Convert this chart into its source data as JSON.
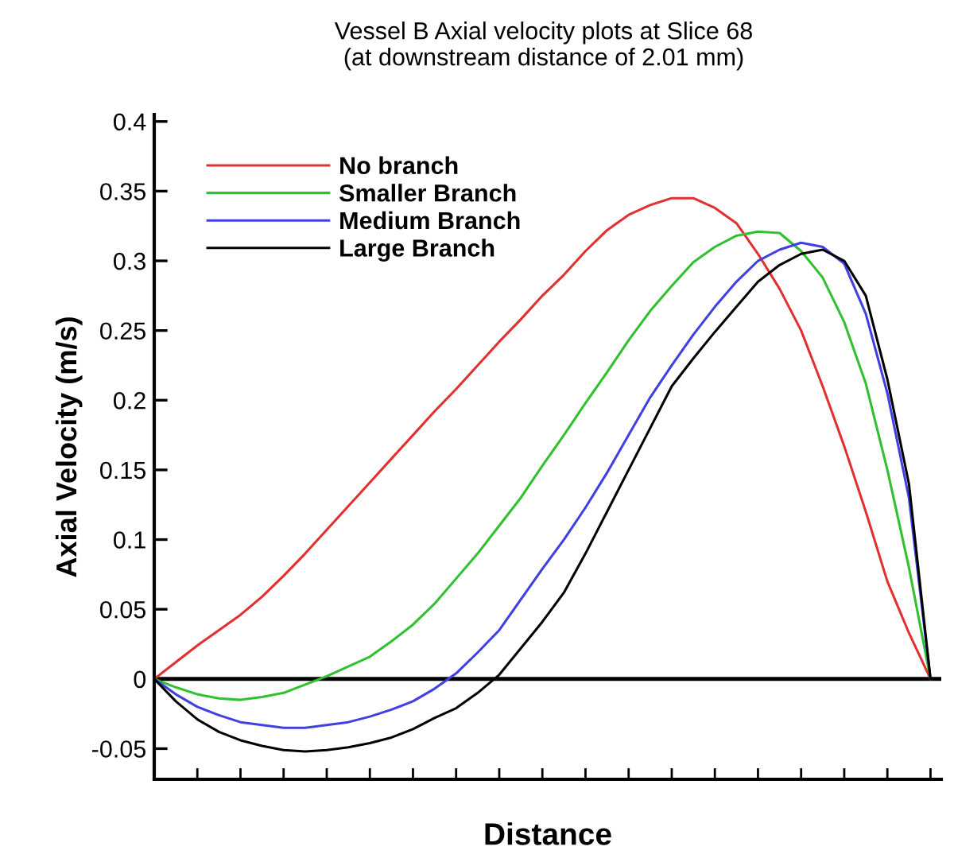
{
  "chart_data": {
    "type": "line",
    "title": "Vessel B Axial velocity plots at Slice 68\n(at downstream distance of 2.01 mm)",
    "xlabel": "Distance",
    "ylabel": "Axial Velocity (m/s)",
    "categories": [
      null,
      null,
      null,
      null,
      null,
      null,
      null,
      null,
      null,
      null,
      null,
      null,
      null,
      null,
      null,
      null,
      null,
      null,
      null,
      null,
      null,
      null,
      null,
      null,
      null,
      null,
      null,
      null,
      null,
      null,
      null,
      null,
      null,
      null,
      null,
      null,
      null
    ],
    "series": [
      {
        "name": "No branch",
        "color": "#e03030",
        "values": [
          0,
          0.012,
          0.024,
          0.035,
          0.046,
          0.059,
          0.074,
          0.09,
          0.107,
          0.124,
          0.141,
          0.158,
          0.175,
          0.192,
          0.208,
          0.225,
          0.242,
          0.258,
          0.275,
          0.29,
          0.307,
          0.322,
          0.333,
          0.34,
          0.345,
          0.345,
          0.338,
          0.327,
          0.305,
          0.28,
          0.25,
          0.21,
          0.167,
          0.12,
          0.07,
          0.033,
          0
        ]
      },
      {
        "name": "Smaller Branch",
        "color": "#30c030",
        "values": [
          0,
          -0.006,
          -0.011,
          -0.014,
          -0.015,
          -0.013,
          -0.01,
          -0.004,
          0.002,
          0.009,
          0.016,
          0.027,
          0.039,
          0.054,
          0.072,
          0.09,
          0.11,
          0.13,
          0.153,
          0.175,
          0.198,
          0.22,
          0.243,
          0.264,
          0.282,
          0.299,
          0.31,
          0.318,
          0.321,
          0.32,
          0.307,
          0.288,
          0.256,
          0.212,
          0.15,
          0.08,
          0
        ]
      },
      {
        "name": "Medium Branch",
        "color": "#4040e0",
        "values": [
          0,
          -0.011,
          -0.02,
          -0.026,
          -0.031,
          -0.033,
          -0.035,
          -0.035,
          -0.033,
          -0.031,
          -0.027,
          -0.022,
          -0.016,
          -0.007,
          0.004,
          0.019,
          0.035,
          0.057,
          0.079,
          0.1,
          0.123,
          0.148,
          0.175,
          0.202,
          0.225,
          0.247,
          0.267,
          0.285,
          0.3,
          0.308,
          0.313,
          0.31,
          0.298,
          0.262,
          0.205,
          0.13,
          0
        ]
      },
      {
        "name": "Large Branch",
        "color": "#000000",
        "values": [
          0,
          -0.016,
          -0.029,
          -0.038,
          -0.044,
          -0.048,
          -0.051,
          -0.052,
          -0.051,
          -0.049,
          -0.046,
          -0.042,
          -0.036,
          -0.028,
          -0.021,
          -0.01,
          0.003,
          0.022,
          0.041,
          0.062,
          0.09,
          0.12,
          0.15,
          0.18,
          0.21,
          0.23,
          0.249,
          0.267,
          0.285,
          0.297,
          0.305,
          0.308,
          0.3,
          0.275,
          0.215,
          0.14,
          0
        ]
      }
    ],
    "ylim": [
      -0.072,
      0.405
    ],
    "yticks": [
      {
        "value": -0.05,
        "label": "-0.05"
      },
      0,
      0.05,
      0.1,
      0.15,
      0.2,
      0.25,
      0.3,
      0.35,
      0.4
    ],
    "tick_labels": "y",
    "ref_lines": [
      {
        "axis": "y",
        "value": 0,
        "color": "#000000",
        "line_style": "solid"
      }
    ],
    "legend": "top left",
    "grid": false,
    "marker": "none",
    "line_style": "solid"
  }
}
